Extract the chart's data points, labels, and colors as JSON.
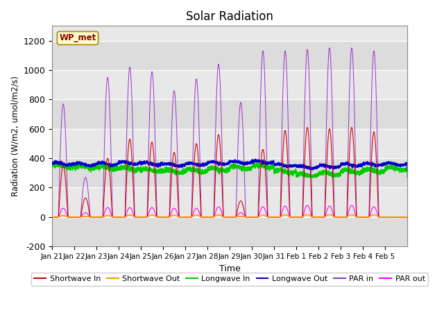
{
  "title": "Solar Radiation",
  "ylabel": "Radiation (W/m2, umol/m2/s)",
  "xlabel": "Time",
  "ylim": [
    -200,
    1300
  ],
  "yticks": [
    -200,
    0,
    200,
    400,
    600,
    800,
    1000,
    1200
  ],
  "xtick_labels": [
    "Jan 21",
    "Jan 22",
    "Jan 23",
    "Jan 24",
    "Jan 25",
    "Jan 26",
    "Jan 27",
    "Jan 28",
    "Jan 29",
    "Jan 30",
    "Jan 31",
    "Feb 1",
    "Feb 2",
    "Feb 3",
    "Feb 4",
    "Feb 5"
  ],
  "station_label": "WP_met",
  "colors": {
    "shortwave_in": "#cc0000",
    "shortwave_out": "#ff9900",
    "longwave_in": "#00cc00",
    "longwave_out": "#0000cc",
    "par_in": "#9933cc",
    "par_out": "#ff00ff"
  },
  "legend_labels": [
    "Shortwave In",
    "Shortwave Out",
    "Longwave In",
    "Longwave Out",
    "PAR in",
    "PAR out"
  ],
  "plot_bg": "#e8e8e8",
  "n_points": 4800,
  "band_colors": [
    "#dcdcdc",
    "#e8e8e8"
  ]
}
